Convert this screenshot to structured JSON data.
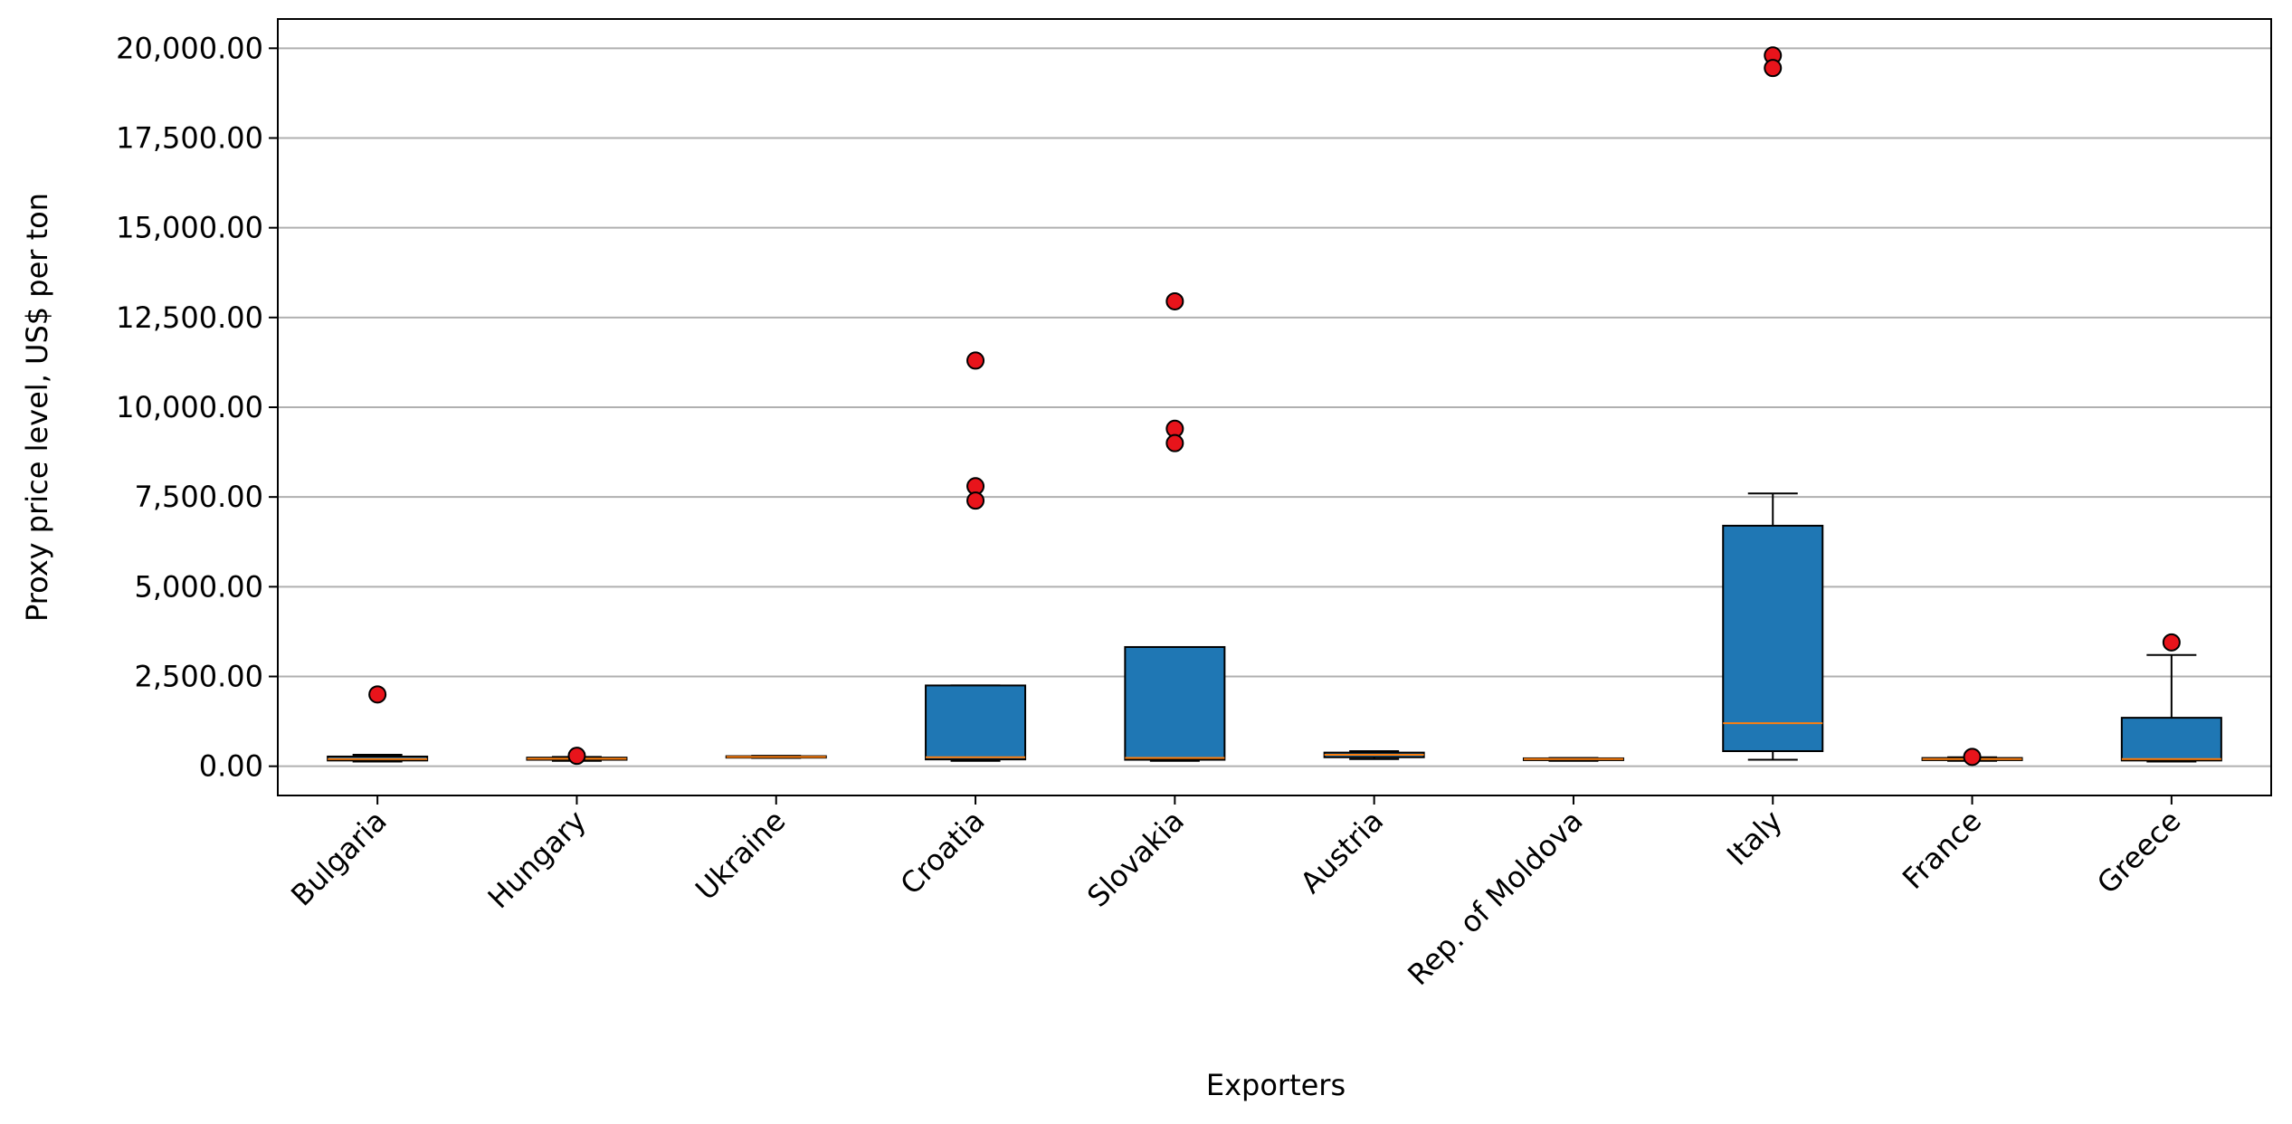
{
  "chart_data": {
    "type": "box",
    "x_label": "Exporters",
    "y_label": "Proxy price level, US$ per ton",
    "categories": [
      "Bulgaria",
      "Hungary",
      "Ukraine",
      "Croatia",
      "Slovakia",
      "Austria",
      "Rep. of Moldova",
      "Italy",
      "France",
      "Greece"
    ],
    "boxes": [
      {
        "whislo": 130,
        "q1": 160,
        "med": 200,
        "q3": 270,
        "whishi": 320,
        "fliers": [
          2000
        ]
      },
      {
        "whislo": 150,
        "q1": 180,
        "med": 210,
        "q3": 240,
        "whishi": 260,
        "fliers": [
          290
        ]
      },
      {
        "whislo": 230,
        "q1": 240,
        "med": 260,
        "q3": 280,
        "whishi": 290,
        "fliers": []
      },
      {
        "whislo": 150,
        "q1": 190,
        "med": 250,
        "q3": 2250,
        "whishi": 2250,
        "fliers": [
          11300,
          7800,
          7400
        ]
      },
      {
        "whislo": 150,
        "q1": 180,
        "med": 230,
        "q3": 3320,
        "whishi": 3320,
        "fliers": [
          12950,
          9400,
          9000
        ]
      },
      {
        "whislo": 200,
        "q1": 250,
        "med": 320,
        "q3": 380,
        "whishi": 420,
        "fliers": []
      },
      {
        "whislo": 150,
        "q1": 170,
        "med": 200,
        "q3": 220,
        "whishi": 230,
        "fliers": []
      },
      {
        "whislo": 180,
        "q1": 420,
        "med": 1200,
        "q3": 6700,
        "whishi": 7600,
        "fliers": [
          19800,
          19450
        ]
      },
      {
        "whislo": 150,
        "q1": 170,
        "med": 200,
        "q3": 230,
        "whishi": 250,
        "fliers": [
          260
        ]
      },
      {
        "whislo": 130,
        "q1": 160,
        "med": 200,
        "q3": 1350,
        "whishi": 3100,
        "fliers": [
          3450
        ]
      }
    ],
    "box_color": "#1f77b4",
    "median_color": "#ff7f0e",
    "flier_color": "#e8141b",
    "ylim": [
      -815,
      20815
    ],
    "yticks": [
      {
        "value": 0,
        "label": "0.00"
      },
      {
        "value": 2500,
        "label": "2,500.00"
      },
      {
        "value": 5000,
        "label": "5,000.00"
      },
      {
        "value": 7500,
        "label": "7,500.00"
      },
      {
        "value": 10000,
        "label": "10,000.00"
      },
      {
        "value": 12500,
        "label": "12,500.00"
      },
      {
        "value": 15000,
        "label": "15,000.00"
      },
      {
        "value": 17500,
        "label": "17,500.00"
      },
      {
        "value": 20000,
        "label": "20,000.00"
      }
    ],
    "grid": true
  }
}
